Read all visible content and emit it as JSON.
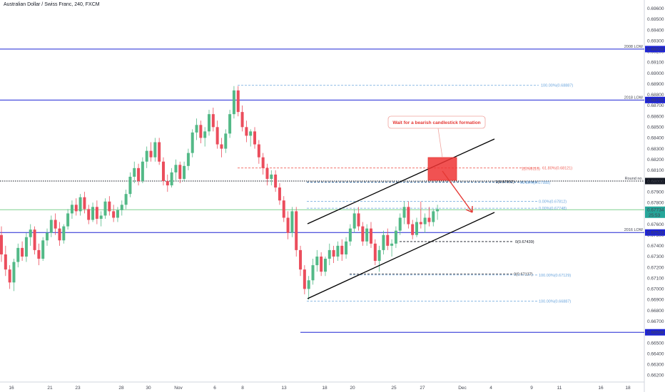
{
  "title": "Australian Dollar / Swiss Franc, 240, FXCM",
  "colors": {
    "up": "#26a69a",
    "down": "#ef5350",
    "upBody": "#53b987",
    "downBody": "#eb4d5c",
    "blue": "#1e24d4",
    "fib": "#6aa5dd",
    "fibRed": "#f0625a",
    "green": "#26a69a",
    "black": "#131722",
    "red": "#e53935"
  },
  "chart_data": {
    "type": "candlestick",
    "ylim": [
      0.6619,
      0.69645
    ],
    "y_ticks": [
      "0.69600",
      "0.69500",
      "0.69400",
      "0.69300",
      "0.69200",
      "0.69100",
      "0.69000",
      "0.68900",
      "0.68800",
      "0.68700",
      "0.68600",
      "0.68500",
      "0.68400",
      "0.68300",
      "0.68200",
      "0.68100",
      "0.68000",
      "0.67900",
      "0.67800",
      "0.67700",
      "0.67600",
      "0.67500",
      "0.67400",
      "0.67300",
      "0.67200",
      "0.67100",
      "0.67000",
      "0.66900",
      "0.66800",
      "0.66700",
      "0.66600",
      "0.66500",
      "0.66400",
      "0.66300",
      "0.66200"
    ],
    "x_ticks": [
      "16",
      "21",
      "23",
      "28",
      "30",
      "Nov",
      "6",
      "8",
      "13",
      "18",
      "20",
      "25",
      "27",
      "Dec",
      "4",
      "9",
      "11",
      "16",
      "18"
    ],
    "horizontal_levels": [
      {
        "label": "2008 LOW",
        "price_label": "0.69223",
        "value": 0.69223
      },
      {
        "label": "2018 LOW",
        "price_label": "0.68751",
        "value": 0.68751
      },
      {
        "label": "Round no.",
        "price_label": "0.68000",
        "value": 0.68
      },
      {
        "label": "2016 LOW",
        "price_label": "0.67523",
        "value": 0.67523
      },
      {
        "label": "",
        "price_label": "0.66598",
        "value": 0.66598
      }
    ],
    "current_price": {
      "value": 0.67734,
      "price_label": "0.67734",
      "countdown": "25:53"
    },
    "fib_labels": [
      {
        "text": "100.00%(0.68887)",
        "value": 0.68887
      },
      {
        "text": "1(0.68115)",
        "value": 0.68115
      },
      {
        "text": "61.80%(0.68121)",
        "value": 0.68121
      },
      {
        "text": "1(0.67992)",
        "value": 0.67992
      },
      {
        "text": "61.80%(0.67988)",
        "value": 0.67988
      },
      {
        "text": "0.00%(0.67812)",
        "value": 0.67812
      },
      {
        "text": "0.00%(0.67748)",
        "value": 0.67748
      },
      {
        "text": "0(0.67439)",
        "value": 0.67439
      },
      {
        "text": "0(0.67137)",
        "value": 0.67137
      },
      {
        "text": "100.00%(0.67129)",
        "value": 0.67129
      },
      {
        "text": "100.00%(0.66887)",
        "value": 0.66887
      }
    ],
    "annotation": "Wait for a bearish candlestick formation",
    "candles": [
      [
        0.675,
        0.6758,
        0.6725,
        0.6732
      ],
      [
        0.6732,
        0.674,
        0.6712,
        0.6718
      ],
      [
        0.6718,
        0.6722,
        0.67,
        0.6706
      ],
      [
        0.6706,
        0.6728,
        0.6698,
        0.6725
      ],
      [
        0.6725,
        0.6742,
        0.672,
        0.6738
      ],
      [
        0.6738,
        0.6744,
        0.6726,
        0.673
      ],
      [
        0.673,
        0.6752,
        0.6725,
        0.6748
      ],
      [
        0.6748,
        0.676,
        0.674,
        0.6755
      ],
      [
        0.6755,
        0.6758,
        0.6732,
        0.6736
      ],
      [
        0.6736,
        0.6742,
        0.6722,
        0.6728
      ],
      [
        0.6728,
        0.6748,
        0.6726,
        0.6745
      ],
      [
        0.6745,
        0.6756,
        0.674,
        0.6752
      ],
      [
        0.6752,
        0.6768,
        0.6748,
        0.6764
      ],
      [
        0.6764,
        0.677,
        0.675,
        0.6756
      ],
      [
        0.6756,
        0.6762,
        0.674,
        0.6745
      ],
      [
        0.6745,
        0.676,
        0.6742,
        0.6758
      ],
      [
        0.6758,
        0.6774,
        0.6755,
        0.677
      ],
      [
        0.677,
        0.6782,
        0.6765,
        0.6778
      ],
      [
        0.6778,
        0.6784,
        0.6768,
        0.6772
      ],
      [
        0.6772,
        0.6788,
        0.6768,
        0.6785
      ],
      [
        0.6785,
        0.679,
        0.677,
        0.6774
      ],
      [
        0.6774,
        0.6778,
        0.676,
        0.6764
      ],
      [
        0.6764,
        0.678,
        0.6762,
        0.6776
      ],
      [
        0.6776,
        0.6782,
        0.676,
        0.6765
      ],
      [
        0.6765,
        0.6772,
        0.6758,
        0.6768
      ],
      [
        0.6768,
        0.6784,
        0.6765,
        0.6781
      ],
      [
        0.6781,
        0.6786,
        0.6768,
        0.6772
      ],
      [
        0.6772,
        0.6778,
        0.6762,
        0.6766
      ],
      [
        0.6766,
        0.6776,
        0.6762,
        0.6773
      ],
      [
        0.6773,
        0.6782,
        0.6768,
        0.6778
      ],
      [
        0.6778,
        0.6792,
        0.6774,
        0.6788
      ],
      [
        0.6788,
        0.6808,
        0.6785,
        0.6804
      ],
      [
        0.6804,
        0.6818,
        0.6798,
        0.6812
      ],
      [
        0.6812,
        0.6816,
        0.6796,
        0.68
      ],
      [
        0.68,
        0.6822,
        0.6798,
        0.6818
      ],
      [
        0.6818,
        0.6832,
        0.6812,
        0.6828
      ],
      [
        0.6828,
        0.6836,
        0.6818,
        0.6822
      ],
      [
        0.6822,
        0.684,
        0.6818,
        0.6836
      ],
      [
        0.6836,
        0.684,
        0.6815,
        0.6818
      ],
      [
        0.6818,
        0.6822,
        0.6796,
        0.68
      ],
      [
        0.68,
        0.6806,
        0.679,
        0.6796
      ],
      [
        0.6796,
        0.6812,
        0.6794,
        0.6808
      ],
      [
        0.6808,
        0.682,
        0.68,
        0.6815
      ],
      [
        0.6815,
        0.6818,
        0.6798,
        0.6802
      ],
      [
        0.6802,
        0.6818,
        0.68,
        0.6814
      ],
      [
        0.6814,
        0.683,
        0.681,
        0.6826
      ],
      [
        0.6826,
        0.6848,
        0.6822,
        0.6845
      ],
      [
        0.6845,
        0.6858,
        0.6838,
        0.6852
      ],
      [
        0.6852,
        0.6856,
        0.6835,
        0.684
      ],
      [
        0.684,
        0.685,
        0.6832,
        0.6846
      ],
      [
        0.6846,
        0.6866,
        0.6842,
        0.6862
      ],
      [
        0.6862,
        0.6868,
        0.6846,
        0.685
      ],
      [
        0.685,
        0.6856,
        0.683,
        0.6834
      ],
      [
        0.6834,
        0.684,
        0.6822,
        0.683
      ],
      [
        0.683,
        0.6848,
        0.6826,
        0.6844
      ],
      [
        0.6844,
        0.6866,
        0.684,
        0.6862
      ],
      [
        0.6862,
        0.6888,
        0.6858,
        0.6884
      ],
      [
        0.6884,
        0.6888,
        0.686,
        0.6864
      ],
      [
        0.6864,
        0.687,
        0.6846,
        0.685
      ],
      [
        0.685,
        0.6856,
        0.6836,
        0.6842
      ],
      [
        0.6842,
        0.6848,
        0.6832,
        0.6846
      ],
      [
        0.6846,
        0.685,
        0.683,
        0.6834
      ],
      [
        0.6834,
        0.6838,
        0.6816,
        0.6822
      ],
      [
        0.6822,
        0.6826,
        0.6806,
        0.6812
      ],
      [
        0.6812,
        0.6816,
        0.6796,
        0.6802
      ],
      [
        0.6802,
        0.681,
        0.6796,
        0.6806
      ],
      [
        0.6806,
        0.681,
        0.679,
        0.6794
      ],
      [
        0.6794,
        0.6798,
        0.6778,
        0.6782
      ],
      [
        0.6782,
        0.6786,
        0.6762,
        0.6766
      ],
      [
        0.6766,
        0.6772,
        0.6746,
        0.6752
      ],
      [
        0.6752,
        0.6776,
        0.6748,
        0.6772
      ],
      [
        0.6772,
        0.6776,
        0.673,
        0.6736
      ],
      [
        0.6736,
        0.674,
        0.6712,
        0.6718
      ],
      [
        0.6718,
        0.6722,
        0.6695,
        0.67
      ],
      [
        0.67,
        0.6712,
        0.669,
        0.6708
      ],
      [
        0.6708,
        0.6728,
        0.6704,
        0.6722
      ],
      [
        0.6722,
        0.6736,
        0.6716,
        0.673
      ],
      [
        0.673,
        0.6734,
        0.6712,
        0.6716
      ],
      [
        0.6716,
        0.673,
        0.6712,
        0.6728
      ],
      [
        0.6728,
        0.6742,
        0.6722,
        0.6736
      ],
      [
        0.6736,
        0.674,
        0.6724,
        0.673
      ],
      [
        0.673,
        0.6744,
        0.6726,
        0.674
      ],
      [
        0.674,
        0.6746,
        0.6726,
        0.6732
      ],
      [
        0.6732,
        0.6748,
        0.6728,
        0.6744
      ],
      [
        0.6744,
        0.676,
        0.674,
        0.6756
      ],
      [
        0.6756,
        0.6774,
        0.6752,
        0.677
      ],
      [
        0.677,
        0.6776,
        0.6754,
        0.6758
      ],
      [
        0.6758,
        0.6762,
        0.674,
        0.6744
      ],
      [
        0.6744,
        0.676,
        0.674,
        0.6756
      ],
      [
        0.6756,
        0.6762,
        0.6738,
        0.6742
      ],
      [
        0.6742,
        0.6746,
        0.6722,
        0.6726
      ],
      [
        0.6726,
        0.674,
        0.6716,
        0.6736
      ],
      [
        0.6736,
        0.6754,
        0.6732,
        0.675
      ],
      [
        0.675,
        0.6756,
        0.6736,
        0.674
      ],
      [
        0.674,
        0.6746,
        0.673,
        0.6742
      ],
      [
        0.6742,
        0.6758,
        0.6738,
        0.6754
      ],
      [
        0.6754,
        0.677,
        0.675,
        0.6766
      ],
      [
        0.6766,
        0.6781,
        0.676,
        0.6776
      ],
      [
        0.6776,
        0.6781,
        0.6756,
        0.676
      ],
      [
        0.676,
        0.6764,
        0.6746,
        0.675
      ],
      [
        0.675,
        0.6766,
        0.6748,
        0.6762
      ],
      [
        0.6762,
        0.6781,
        0.6756,
        0.676
      ],
      [
        0.676,
        0.677,
        0.6752,
        0.6766
      ],
      [
        0.6766,
        0.6776,
        0.6758,
        0.6762
      ],
      [
        0.6762,
        0.6774,
        0.6758,
        0.6772
      ],
      [
        0.6772,
        0.6778,
        0.6764,
        0.6774
      ]
    ]
  }
}
